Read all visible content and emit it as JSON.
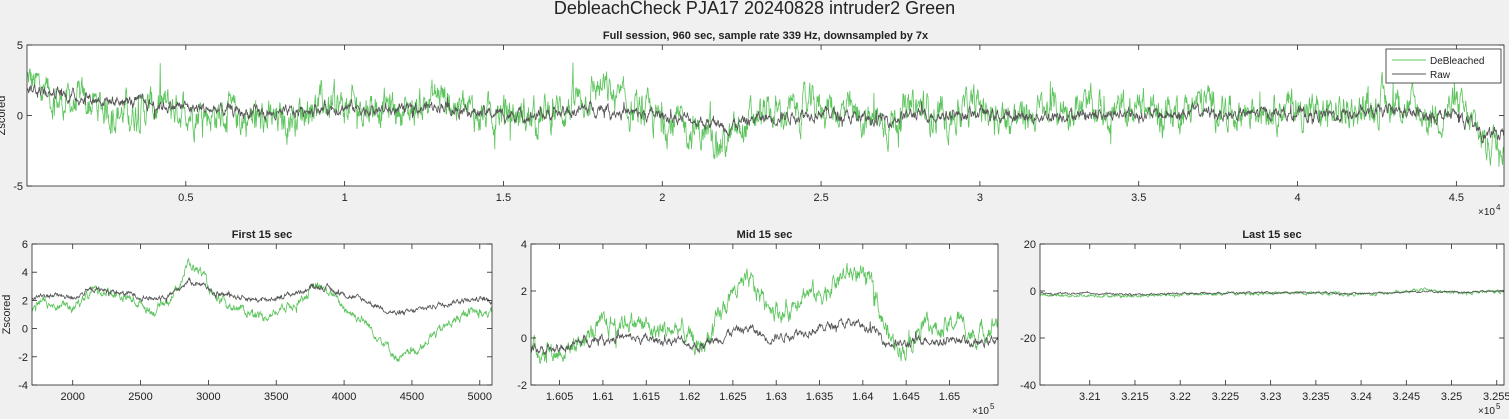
{
  "figure": {
    "suptitle": "DebleachCheck PJA17 20240828  intruder2 Green"
  },
  "chart_data": [
    {
      "type": "line",
      "title": "Full session, 960 sec, sample rate 339 Hz, downsampled by 7x",
      "xlabel": "",
      "ylabel": "Zscored",
      "xlim": [
        0,
        46500
      ],
      "ylim": [
        -5,
        5
      ],
      "x_exponent_label": "×10",
      "x_exponent": "4",
      "x_ticks": [
        5000,
        10000,
        15000,
        20000,
        25000,
        30000,
        35000,
        40000,
        45000
      ],
      "x_tick_labels": [
        "0.5",
        "1",
        "1.5",
        "2",
        "2.5",
        "3",
        "3.5",
        "4",
        "4.5"
      ],
      "y_ticks": [
        -5,
        0,
        5
      ],
      "y_tick_labels": [
        "-5",
        "0",
        "5"
      ],
      "legend": {
        "location": "top-right",
        "entries": [
          "DeBleached",
          "Raw"
        ]
      },
      "colors": {
        "DeBleached": "#5cc45c",
        "Raw": "#555555"
      },
      "series": [
        {
          "name": "DeBleached",
          "x": [
            0,
            1000,
            2000,
            3000,
            4000,
            5000,
            6000,
            7000,
            8000,
            9000,
            10000,
            11000,
            12000,
            13000,
            14000,
            15000,
            16000,
            17000,
            18000,
            19000,
            20000,
            21000,
            22000,
            23000,
            24000,
            25000,
            26000,
            27000,
            28000,
            29000,
            30000,
            31000,
            32000,
            33000,
            34000,
            35000,
            36000,
            37000,
            38000,
            39000,
            40000,
            41000,
            42000,
            43000,
            44000,
            45000,
            46000,
            46500
          ],
          "values": [
            2.5,
            1.0,
            0.8,
            0.2,
            0.6,
            0.5,
            0.0,
            -0.3,
            -0.5,
            0.8,
            0.5,
            0.8,
            0.3,
            1.5,
            0.0,
            0.2,
            -0.2,
            0.6,
            2.0,
            0.3,
            -0.5,
            -1.0,
            -2.0,
            0.0,
            0.2,
            0.8,
            0.0,
            -0.5,
            0.5,
            0.0,
            0.6,
            -0.3,
            0.3,
            0.6,
            0.2,
            0.4,
            0.2,
            1.0,
            0.2,
            0.8,
            0.5,
            0.0,
            0.5,
            1.0,
            0.0,
            0.6,
            -2.0,
            -1.5
          ],
          "band": 1.3
        },
        {
          "name": "Raw",
          "x": [
            0,
            1000,
            2000,
            3000,
            4000,
            5000,
            6000,
            7000,
            8000,
            9000,
            10000,
            11000,
            12000,
            13000,
            14000,
            15000,
            16000,
            17000,
            18000,
            19000,
            20000,
            21000,
            22000,
            23000,
            24000,
            25000,
            26000,
            27000,
            28000,
            29000,
            30000,
            31000,
            32000,
            33000,
            34000,
            35000,
            36000,
            37000,
            38000,
            39000,
            40000,
            41000,
            42000,
            43000,
            44000,
            45000,
            46000,
            46500
          ],
          "values": [
            2.0,
            1.5,
            1.2,
            1.0,
            0.8,
            0.6,
            0.4,
            0.2,
            0.0,
            0.5,
            0.6,
            0.4,
            0.3,
            0.8,
            0.2,
            0.1,
            0.0,
            0.2,
            0.6,
            0.1,
            0.0,
            -0.3,
            -0.8,
            -0.2,
            0.0,
            0.3,
            -0.2,
            -0.3,
            0.1,
            0.0,
            0.2,
            -0.2,
            0.0,
            0.1,
            0.0,
            0.1,
            0.0,
            0.3,
            0.0,
            0.2,
            0.1,
            0.0,
            0.1,
            0.3,
            0.0,
            0.0,
            -1.5,
            -1.2
          ],
          "band": 0.45
        }
      ]
    },
    {
      "type": "line",
      "title": "First 15 sec",
      "xlabel": "",
      "ylabel": "Zscored",
      "xlim": [
        1700,
        5090
      ],
      "ylim": [
        -4,
        6
      ],
      "x_ticks": [
        2000,
        2500,
        3000,
        3500,
        4000,
        4500,
        5000
      ],
      "x_tick_labels": [
        "2000",
        "2500",
        "3000",
        "3500",
        "4000",
        "4500",
        "5000"
      ],
      "y_ticks": [
        -4,
        -2,
        0,
        2,
        4,
        6
      ],
      "y_tick_labels": [
        "-4",
        "-2",
        "0",
        "2",
        "4",
        "6"
      ],
      "colors": {
        "DeBleached": "#5cc45c",
        "Raw": "#555555"
      },
      "series": [
        {
          "name": "DeBleached",
          "x": [
            1700,
            1850,
            2000,
            2150,
            2300,
            2450,
            2600,
            2750,
            2850,
            2950,
            3050,
            3200,
            3400,
            3600,
            3800,
            3900,
            4000,
            4150,
            4300,
            4400,
            4500,
            4650,
            4800,
            4950,
            5090
          ],
          "values": [
            1.5,
            1.8,
            1.4,
            2.8,
            2.5,
            2.0,
            1.2,
            2.5,
            4.6,
            4.0,
            2.0,
            1.5,
            0.8,
            1.6,
            3.0,
            2.5,
            1.5,
            0.5,
            -1.0,
            -2.2,
            -1.8,
            -0.5,
            0.5,
            1.2,
            1.0
          ],
          "band": 0.35
        },
        {
          "name": "Raw",
          "x": [
            1700,
            1850,
            2000,
            2150,
            2300,
            2450,
            2600,
            2750,
            2850,
            2950,
            3050,
            3200,
            3400,
            3600,
            3800,
            3900,
            4000,
            4150,
            4300,
            4400,
            4500,
            4650,
            4800,
            4950,
            5090
          ],
          "values": [
            2.2,
            2.4,
            2.2,
            2.8,
            2.6,
            2.4,
            2.1,
            2.6,
            3.4,
            3.2,
            2.5,
            2.3,
            2.0,
            2.4,
            3.0,
            2.8,
            2.4,
            2.0,
            1.4,
            1.0,
            1.2,
            1.6,
            1.9,
            2.1,
            2.0
          ],
          "band": 0.2
        }
      ]
    },
    {
      "type": "line",
      "title": "Mid 15 sec",
      "xlabel": "",
      "ylabel": "",
      "xlim": [
        160170,
        165560
      ],
      "ylim": [
        -2,
        4
      ],
      "x_exponent_label": "×10",
      "x_exponent": "5",
      "x_ticks": [
        160500,
        161000,
        161500,
        162000,
        162500,
        163000,
        163500,
        164000,
        164500,
        165000
      ],
      "x_tick_labels": [
        "1.605",
        "1.61",
        "1.615",
        "1.62",
        "1.625",
        "1.63",
        "1.635",
        "1.64",
        "1.645",
        "1.65"
      ],
      "y_ticks": [
        -2,
        0,
        2,
        4
      ],
      "y_tick_labels": [
        "-2",
        "0",
        "2",
        "4"
      ],
      "colors": {
        "DeBleached": "#5cc45c",
        "Raw": "#555555"
      },
      "series": [
        {
          "name": "DeBleached",
          "x": [
            160170,
            160500,
            160800,
            161000,
            161300,
            161600,
            161900,
            162100,
            162300,
            162500,
            162700,
            162900,
            163100,
            163300,
            163500,
            163700,
            163900,
            164100,
            164300,
            164500,
            164700,
            164900,
            165100,
            165300,
            165560
          ],
          "values": [
            -0.5,
            -0.6,
            0.0,
            0.5,
            0.8,
            0.3,
            0.4,
            -0.5,
            0.5,
            2.0,
            2.3,
            1.5,
            1.0,
            2.0,
            1.8,
            2.5,
            2.8,
            2.2,
            0.0,
            -0.5,
            0.8,
            0.2,
            0.8,
            0.0,
            0.8
          ],
          "band": 0.45
        },
        {
          "name": "Raw",
          "x": [
            160170,
            160500,
            160800,
            161000,
            161300,
            161600,
            161900,
            162100,
            162300,
            162500,
            162700,
            162900,
            163100,
            163300,
            163500,
            163700,
            163900,
            164100,
            164300,
            164500,
            164700,
            164900,
            165100,
            165300,
            165560
          ],
          "values": [
            -0.5,
            -0.5,
            -0.1,
            0.0,
            0.0,
            -0.1,
            -0.1,
            -0.4,
            -0.1,
            0.3,
            0.4,
            0.0,
            0.1,
            0.3,
            0.4,
            0.6,
            0.6,
            0.4,
            -0.2,
            -0.3,
            0.0,
            -0.2,
            0.0,
            -0.3,
            0.0
          ],
          "band": 0.2
        }
      ]
    },
    {
      "type": "line",
      "title": "Last 15 sec",
      "xlabel": "",
      "ylabel": "",
      "xlim": [
        320450,
        325580
      ],
      "ylim": [
        -40,
        20
      ],
      "x_exponent_label": "×10",
      "x_exponent": "5",
      "x_ticks": [
        321000,
        321500,
        322000,
        322500,
        323000,
        323500,
        324000,
        324500,
        325000,
        325500
      ],
      "x_tick_labels": [
        "3.21",
        "3.215",
        "3.22",
        "3.225",
        "3.23",
        "3.235",
        "3.24",
        "3.245",
        "3.25",
        "3.255"
      ],
      "y_ticks": [
        -40,
        -20,
        0,
        20
      ],
      "y_tick_labels": [
        "-40",
        "-20",
        "0",
        "20"
      ],
      "colors": {
        "DeBleached": "#5cc45c",
        "Raw": "#555555"
      },
      "series": [
        {
          "name": "DeBleached",
          "x": [
            320450,
            321000,
            321500,
            322000,
            322500,
            323000,
            323500,
            324000,
            324500,
            324700,
            325000,
            325580
          ],
          "values": [
            -2.0,
            -1.8,
            -2.2,
            -1.5,
            -1.2,
            -1.0,
            -0.8,
            -1.5,
            -0.5,
            0.5,
            -0.8,
            -0.2
          ],
          "band": 0.7
        },
        {
          "name": "Raw",
          "x": [
            320450,
            321000,
            321500,
            322000,
            322500,
            323000,
            323500,
            324000,
            324500,
            324700,
            325000,
            325580
          ],
          "values": [
            -1.2,
            -1.0,
            -1.5,
            -1.0,
            -0.8,
            -0.8,
            -0.6,
            -1.2,
            -0.4,
            0.0,
            -0.6,
            0.0
          ],
          "band": 0.4
        }
      ]
    }
  ]
}
